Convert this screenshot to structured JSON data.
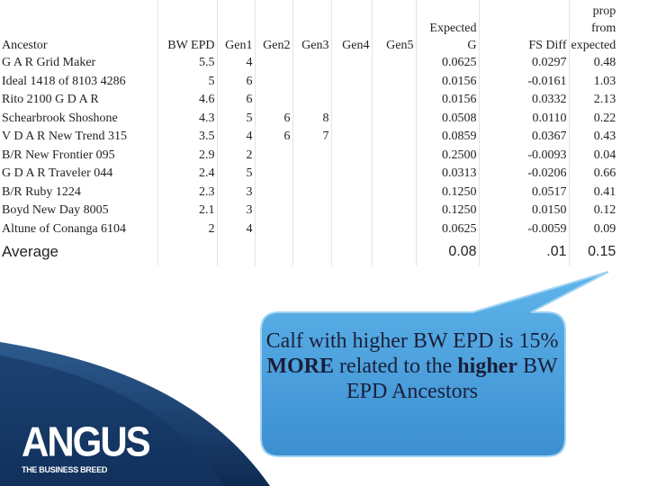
{
  "table": {
    "headers": [
      "Ancestor",
      "BW EPD",
      "Gen1",
      "Gen2",
      "Gen3",
      "Gen4",
      "Gen5",
      "Expected G",
      "FS Diff",
      "prop from expected"
    ],
    "rows": [
      [
        "G A R Grid Maker",
        "5.5",
        "4",
        null,
        null,
        null,
        null,
        "0.0625",
        "0.0297",
        "0.48"
      ],
      [
        "Ideal 1418 of 8103 4286",
        "5",
        "6",
        null,
        null,
        null,
        null,
        "0.0156",
        "-0.0161",
        "1.03"
      ],
      [
        "Rito 2100 G D A R",
        "4.6",
        "6",
        null,
        null,
        null,
        null,
        "0.0156",
        "0.0332",
        "2.13"
      ],
      [
        "Schearbrook Shoshone",
        "4.3",
        "5",
        "6",
        "8",
        null,
        null,
        "0.0508",
        "0.0110",
        "0.22"
      ],
      [
        "V D A R New Trend 315",
        "3.5",
        "4",
        "6",
        "7",
        null,
        null,
        "0.0859",
        "0.0367",
        "0.43"
      ],
      [
        "B/R New Frontier 095",
        "2.9",
        "2",
        null,
        null,
        null,
        null,
        "0.2500",
        "-0.0093",
        "0.04"
      ],
      [
        "G D A R Traveler 044",
        "2.4",
        "5",
        null,
        null,
        null,
        null,
        "0.0313",
        "-0.0206",
        "0.66"
      ],
      [
        "B/R Ruby 1224",
        "2.3",
        "3",
        null,
        null,
        null,
        null,
        "0.1250",
        "0.0517",
        "0.41"
      ],
      [
        "Boyd New Day 8005",
        "2.1",
        "3",
        null,
        null,
        null,
        null,
        "0.1250",
        "0.0150",
        "0.12"
      ],
      [
        "Altune of Conanga 6104",
        "2",
        "4",
        null,
        null,
        null,
        null,
        "0.0625",
        "-0.0059",
        "0.09"
      ]
    ],
    "average": [
      "Average",
      null,
      null,
      null,
      null,
      null,
      null,
      "0.08",
      ".01",
      "0.15"
    ]
  },
  "callout": {
    "parts": [
      "Calf with higher BW EPD is 15% ",
      "MORE",
      " related to the ",
      "higher",
      " BW EPD Ancestors"
    ]
  },
  "logo": {
    "name": "ANGUS",
    "tagline": "THE BUSINESS BREED"
  }
}
